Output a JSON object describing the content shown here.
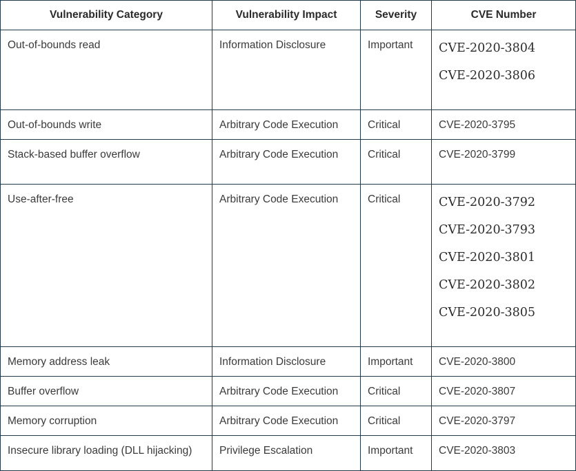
{
  "table": {
    "headers": {
      "category": "Vulnerability Category",
      "impact": "Vulnerability Impact",
      "severity": "Severity",
      "cve": "CVE Number"
    },
    "rows": [
      {
        "category": "Out-of-bounds read",
        "impact": "Information Disclosure",
        "severity": "Important",
        "cves": [
          "CVE-2020-3804",
          "CVE-2020-3806"
        ]
      },
      {
        "category": "Out-of-bounds write",
        "impact": "Arbitrary Code Execution",
        "severity": "Critical",
        "cve": "CVE-2020-3795"
      },
      {
        "category": "Stack-based buffer overflow",
        "impact": "Arbitrary Code Execution",
        "severity": "Critical",
        "cve": "CVE-2020-3799"
      },
      {
        "category": "Use-after-free",
        "impact": "Arbitrary Code Execution",
        "severity": "Critical",
        "cves": [
          "CVE-2020-3792",
          "CVE-2020-3793",
          "CVE-2020-3801",
          "CVE-2020-3802",
          "CVE-2020-3805"
        ]
      },
      {
        "category": "Memory address leak",
        "impact": "Information Disclosure",
        "severity": "Important",
        "cve": "CVE-2020-3800"
      },
      {
        "category": "Buffer overflow",
        "impact": "Arbitrary Code Execution",
        "severity": "Critical",
        "cve": "CVE-2020-3807"
      },
      {
        "category": "Memory corruption",
        "impact": "Arbitrary Code Execution",
        "severity": "Critical",
        "cve": "CVE-2020-3797"
      },
      {
        "category": "Insecure library loading (DLL hijacking)",
        "impact": "Privilege Escalation",
        "severity": "Important",
        "cve": "CVE-2020-3803"
      }
    ]
  }
}
